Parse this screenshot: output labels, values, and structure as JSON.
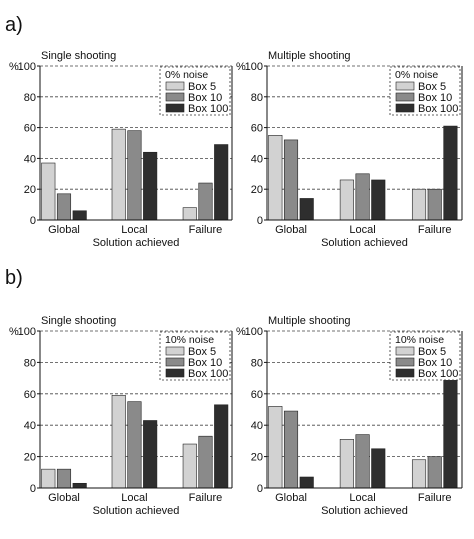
{
  "panels": [
    {
      "label": "a)"
    },
    {
      "label": "b)"
    }
  ],
  "colors": {
    "Box 5": "#d2d2d2",
    "Box 10": "#8a8a8a",
    "Box 100": "#2e2e2e",
    "grid": "#444444",
    "axis": "#111111"
  },
  "chart_data": [
    {
      "type": "bar",
      "panel": "a)",
      "title": "Single shooting",
      "xlabel": "Solution achieved",
      "ylabel": "%",
      "ylim": [
        0,
        100
      ],
      "yticks": [
        0,
        20,
        40,
        60,
        80,
        100
      ],
      "grid": "horizontal dashed",
      "legend_title": "0% noise",
      "legend_position": "top-right",
      "categories": [
        "Global",
        "Local",
        "Failure"
      ],
      "series": [
        {
          "name": "Box 5",
          "values": [
            37,
            59,
            8
          ]
        },
        {
          "name": "Box 10",
          "values": [
            17,
            58,
            24
          ]
        },
        {
          "name": "Box 100",
          "values": [
            6,
            44,
            49
          ]
        }
      ]
    },
    {
      "type": "bar",
      "panel": "a)",
      "title": "Multiple shooting",
      "xlabel": "Solution achieved",
      "ylabel": "%",
      "ylim": [
        0,
        100
      ],
      "yticks": [
        0,
        20,
        40,
        60,
        80,
        100
      ],
      "grid": "horizontal dashed",
      "legend_title": "0% noise",
      "legend_position": "top-right",
      "categories": [
        "Global",
        "Local",
        "Failure"
      ],
      "series": [
        {
          "name": "Box 5",
          "values": [
            55,
            26,
            20
          ]
        },
        {
          "name": "Box 10",
          "values": [
            52,
            30,
            20
          ]
        },
        {
          "name": "Box 100",
          "values": [
            14,
            26,
            61
          ]
        }
      ]
    },
    {
      "type": "bar",
      "panel": "b)",
      "title": "Single shooting",
      "xlabel": "Solution achieved",
      "ylabel": "%",
      "ylim": [
        0,
        100
      ],
      "yticks": [
        0,
        20,
        40,
        60,
        80,
        100
      ],
      "grid": "horizontal dashed",
      "legend_title": "10% noise",
      "legend_position": "top-right",
      "categories": [
        "Global",
        "Local",
        "Failure"
      ],
      "series": [
        {
          "name": "Box 5",
          "values": [
            12,
            59,
            28
          ]
        },
        {
          "name": "Box 10",
          "values": [
            12,
            55,
            33
          ]
        },
        {
          "name": "Box 100",
          "values": [
            3,
            43,
            53
          ]
        }
      ]
    },
    {
      "type": "bar",
      "panel": "b)",
      "title": "Multiple shooting",
      "xlabel": "Solution achieved",
      "ylabel": "%",
      "ylim": [
        0,
        100
      ],
      "yticks": [
        0,
        20,
        40,
        60,
        80,
        100
      ],
      "grid": "horizontal dashed",
      "legend_title": "10% noise",
      "legend_position": "top-right",
      "categories": [
        "Global",
        "Local",
        "Failure"
      ],
      "series": [
        {
          "name": "Box 5",
          "values": [
            52,
            31,
            18
          ]
        },
        {
          "name": "Box 10",
          "values": [
            49,
            34,
            20
          ]
        },
        {
          "name": "Box 100",
          "values": [
            7,
            25,
            69
          ]
        }
      ]
    }
  ]
}
